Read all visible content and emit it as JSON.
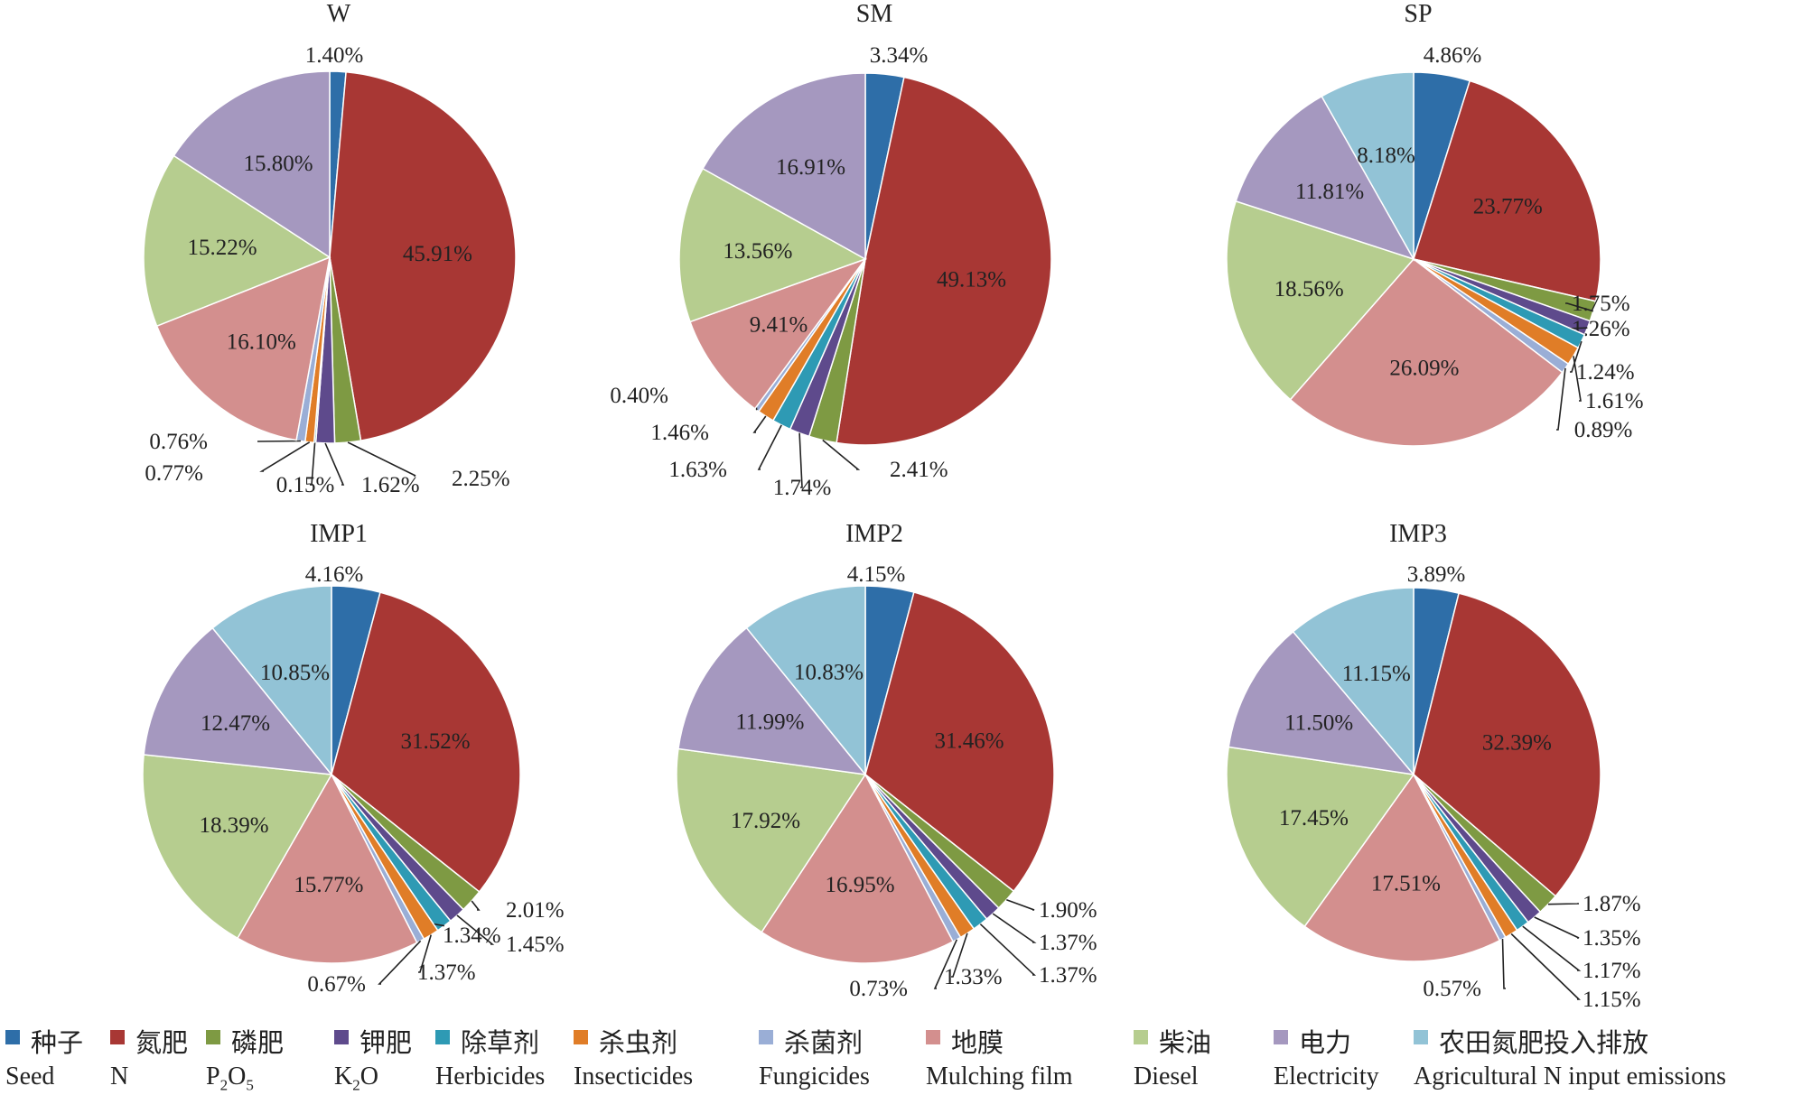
{
  "chart_data": [
    {
      "type": "pie",
      "title": "W",
      "slices": [
        {
          "category": "种子",
          "label": "1.40%",
          "value": 1.4
        },
        {
          "category": "氮肥",
          "label": "45.91%",
          "value": 45.91
        },
        {
          "category": "磷肥",
          "label": "2.25%",
          "value": 2.25
        },
        {
          "category": "钾肥",
          "label": "1.62%",
          "value": 1.62
        },
        {
          "category": "除草剂",
          "label": "0.15%",
          "value": 0.15
        },
        {
          "category": "杀虫剂",
          "label": "0.77%",
          "value": 0.77
        },
        {
          "category": "杀菌剂",
          "label": "0.76%",
          "value": 0.76
        },
        {
          "category": "地膜",
          "label": "16.10%",
          "value": 16.1
        },
        {
          "category": "柴油",
          "label": "15.22%",
          "value": 15.22
        },
        {
          "category": "电力",
          "label": "15.80%",
          "value": 15.8
        }
      ]
    },
    {
      "type": "pie",
      "title": "SM",
      "slices": [
        {
          "category": "种子",
          "label": "3.34%",
          "value": 3.34
        },
        {
          "category": "氮肥",
          "label": "49.13%",
          "value": 49.13
        },
        {
          "category": "磷肥",
          "label": "2.41%",
          "value": 2.41
        },
        {
          "category": "钾肥",
          "label": "1.74%",
          "value": 1.74
        },
        {
          "category": "除草剂",
          "label": "1.63%",
          "value": 1.63
        },
        {
          "category": "杀虫剂",
          "label": "1.46%",
          "value": 1.46
        },
        {
          "category": "杀菌剂",
          "label": "0.40%",
          "value": 0.4
        },
        {
          "category": "地膜",
          "label": "9.41%",
          "value": 9.41
        },
        {
          "category": "柴油",
          "label": "13.56%",
          "value": 13.56
        },
        {
          "category": "电力",
          "label": "16.91%",
          "value": 16.91
        }
      ]
    },
    {
      "type": "pie",
      "title": "SP",
      "slices": [
        {
          "category": "种子",
          "label": "4.86%",
          "value": 4.86
        },
        {
          "category": "氮肥",
          "label": "23.77%",
          "value": 23.77
        },
        {
          "category": "磷肥",
          "label": "1.75%",
          "value": 1.75
        },
        {
          "category": "钾肥",
          "label": "1.26%",
          "value": 1.26
        },
        {
          "category": "除草剂",
          "label": "1.24%",
          "value": 1.24
        },
        {
          "category": "杀虫剂",
          "label": "1.61%",
          "value": 1.61
        },
        {
          "category": "杀菌剂",
          "label": "0.89%",
          "value": 0.89
        },
        {
          "category": "地膜",
          "label": "26.09%",
          "value": 26.09
        },
        {
          "category": "柴油",
          "label": "18.56%",
          "value": 18.56
        },
        {
          "category": "电力",
          "label": "11.81%",
          "value": 11.81
        },
        {
          "category": "农田氮肥投入排放",
          "label": "8.18%",
          "value": 8.18
        }
      ]
    },
    {
      "type": "pie",
      "title": "IMP1",
      "slices": [
        {
          "category": "种子",
          "label": "4.16%",
          "value": 4.16
        },
        {
          "category": "氮肥",
          "label": "31.52%",
          "value": 31.52
        },
        {
          "category": "磷肥",
          "label": "2.01%",
          "value": 2.01
        },
        {
          "category": "钾肥",
          "label": "1.45%",
          "value": 1.45
        },
        {
          "category": "除草剂",
          "label": "1.34%",
          "value": 1.34
        },
        {
          "category": "杀虫剂",
          "label": "1.37%",
          "value": 1.37
        },
        {
          "category": "杀菌剂",
          "label": "0.67%",
          "value": 0.67
        },
        {
          "category": "地膜",
          "label": "15.77%",
          "value": 15.77
        },
        {
          "category": "柴油",
          "label": "18.39%",
          "value": 18.39
        },
        {
          "category": "电力",
          "label": "12.47%",
          "value": 12.47
        },
        {
          "category": "农田氮肥投入排放",
          "label": "10.85%",
          "value": 10.85
        }
      ]
    },
    {
      "type": "pie",
      "title": "IMP2",
      "slices": [
        {
          "category": "种子",
          "label": "4.15%",
          "value": 4.15
        },
        {
          "category": "氮肥",
          "label": "31.46%",
          "value": 31.46
        },
        {
          "category": "磷肥",
          "label": "1.90%",
          "value": 1.9
        },
        {
          "category": "钾肥",
          "label": "1.37%",
          "value": 1.37
        },
        {
          "category": "除草剂",
          "label": "1.37%",
          "value": 1.37
        },
        {
          "category": "杀虫剂",
          "label": "1.33%",
          "value": 1.33
        },
        {
          "category": "杀菌剂",
          "label": "0.73%",
          "value": 0.73
        },
        {
          "category": "地膜",
          "label": "16.95%",
          "value": 16.95
        },
        {
          "category": "柴油",
          "label": "17.92%",
          "value": 17.92
        },
        {
          "category": "电力",
          "label": "11.99%",
          "value": 11.99
        },
        {
          "category": "农田氮肥投入排放",
          "label": "10.83%",
          "value": 10.83
        }
      ]
    },
    {
      "type": "pie",
      "title": "IMP3",
      "slices": [
        {
          "category": "种子",
          "label": "3.89%",
          "value": 3.89
        },
        {
          "category": "氮肥",
          "label": "32.39%",
          "value": 32.39
        },
        {
          "category": "磷肥",
          "label": "1.87%",
          "value": 1.87
        },
        {
          "category": "钾肥",
          "label": "1.35%",
          "value": 1.35
        },
        {
          "category": "除草剂",
          "label": "1.17%",
          "value": 1.17
        },
        {
          "category": "杀虫剂",
          "label": "1.15%",
          "value": 1.15
        },
        {
          "category": "杀菌剂",
          "label": "0.57%",
          "value": 0.57
        },
        {
          "category": "地膜",
          "label": "17.51%",
          "value": 17.51
        },
        {
          "category": "柴油",
          "label": "17.45%",
          "value": 17.45
        },
        {
          "category": "电力",
          "label": "11.50%",
          "value": 11.5
        },
        {
          "category": "农田氮肥投入排放",
          "label": "11.15%",
          "value": 11.15
        }
      ]
    }
  ],
  "legend": {
    "placement": "bottom",
    "items": [
      {
        "cn": "种子",
        "en": "Seed",
        "en_sub": "",
        "en_tail": "",
        "color": "#2e6ea8"
      },
      {
        "cn": "氮肥",
        "en": "N",
        "en_sub": "",
        "en_tail": "",
        "color": "#a83734"
      },
      {
        "cn": "磷肥",
        "en": "P",
        "en_sub": "2",
        "en_tail": "O",
        "en_sub2": "5",
        "color": "#7e9a43"
      },
      {
        "cn": "钾肥",
        "en": "K",
        "en_sub": "2",
        "en_tail": "O",
        "color": "#5e4a8c"
      },
      {
        "cn": "除草剂",
        "en": "Herbicides",
        "en_sub": "",
        "en_tail": "",
        "color": "#2e9ab4"
      },
      {
        "cn": "杀虫剂",
        "en": "Insecticides",
        "en_sub": "",
        "en_tail": "",
        "color": "#e07d27"
      },
      {
        "cn": "杀菌剂",
        "en": "Fungicides",
        "en_sub": "",
        "en_tail": "",
        "color": "#9aaed6"
      },
      {
        "cn": "地膜",
        "en": "Mulching film",
        "en_sub": "",
        "en_tail": "",
        "color": "#d38f8e"
      },
      {
        "cn": "柴油",
        "en": "Diesel",
        "en_sub": "",
        "en_tail": "",
        "color": "#b6cd8f"
      },
      {
        "cn": "电力",
        "en": "Electricity",
        "en_sub": "",
        "en_tail": "",
        "color": "#a598bf"
      },
      {
        "cn": "农田氮肥投入排放",
        "en": "Agricultural N input emissions",
        "en_sub": "",
        "en_tail": "",
        "color": "#92c3d6"
      }
    ]
  }
}
